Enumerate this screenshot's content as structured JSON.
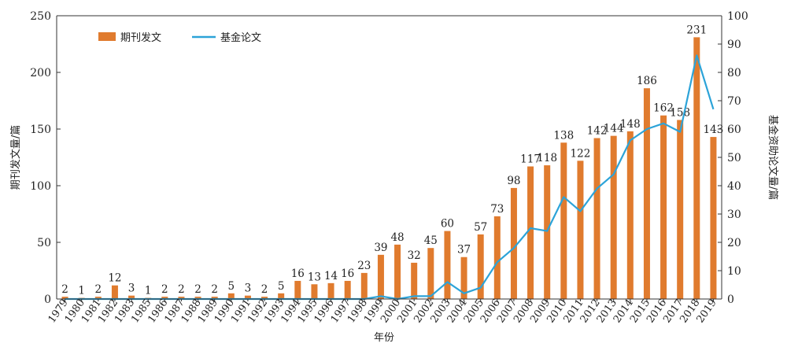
{
  "colors": {
    "bar": "#e07b2e",
    "line": "#2ca3d8",
    "axis": "#333333",
    "text": "#222222"
  },
  "chart_data": {
    "type": "bar",
    "title": "",
    "xlabel": "年份",
    "ylabel": "期刊发文量/篇",
    "y2label": "基金资助论文量/篇",
    "ylim": [
      0,
      250
    ],
    "y2lim": [
      0,
      100
    ],
    "yticks": [
      0,
      50,
      100,
      150,
      200,
      250
    ],
    "y2ticks": [
      0,
      10,
      20,
      30,
      40,
      50,
      60,
      70,
      80,
      90,
      100
    ],
    "grid": false,
    "legend_position": "top-left",
    "categories": [
      "1979",
      "1980",
      "1981",
      "1982",
      "1983",
      "1985",
      "1986",
      "1987",
      "1988",
      "1989",
      "1990",
      "1991",
      "1992",
      "1993",
      "1994",
      "1995",
      "1996",
      "1997",
      "1998",
      "1999",
      "2000",
      "2001",
      "2002",
      "2003",
      "2004",
      "2005",
      "2006",
      "2007",
      "2008",
      "2009",
      "2010",
      "2011",
      "2012",
      "2013",
      "2014",
      "2015",
      "2016",
      "2017",
      "2018",
      "2019"
    ],
    "series": [
      {
        "name": "期刊发文",
        "type": "bar",
        "axis": "left",
        "values": [
          2,
          1,
          2,
          12,
          3,
          1,
          2,
          2,
          2,
          2,
          5,
          3,
          2,
          5,
          16,
          13,
          14,
          16,
          23,
          39,
          48,
          32,
          45,
          60,
          37,
          57,
          73,
          98,
          117,
          118,
          138,
          122,
          142,
          144,
          148,
          186,
          162,
          158,
          231,
          143
        ]
      },
      {
        "name": "基金论文",
        "type": "line",
        "axis": "right",
        "values": [
          0,
          0,
          0,
          0,
          0,
          0,
          0,
          0,
          0,
          0,
          0,
          0,
          0,
          0,
          0,
          0,
          0,
          0,
          0,
          1,
          0,
          1,
          1,
          6,
          2,
          4,
          13,
          18,
          25,
          24,
          36,
          31,
          39,
          44,
          56,
          60,
          62,
          59,
          86,
          67
        ]
      }
    ]
  }
}
